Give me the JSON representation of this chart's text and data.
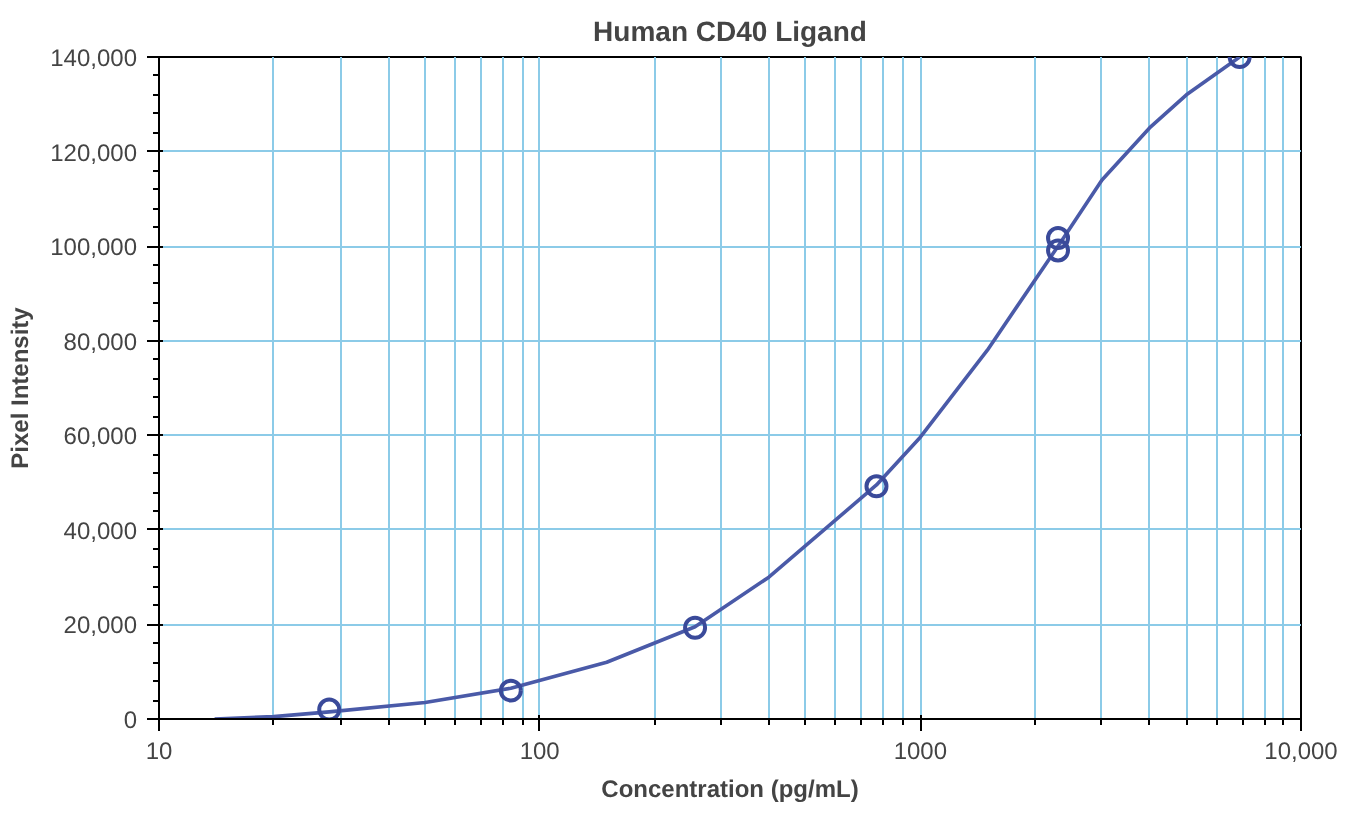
{
  "chart_data": {
    "type": "line",
    "title": "Human CD40 Ligand",
    "xlabel": "Concentration (pg/mL)",
    "ylabel": "Pixel Intensity",
    "log": "x",
    "grid": true,
    "xlim": [
      10,
      10000
    ],
    "ylim": [
      0,
      140000
    ],
    "xticks": [
      10,
      100,
      1000,
      {
        "value": 10000,
        "label": "10,000"
      }
    ],
    "yticks": [
      0,
      {
        "value": 20000,
        "label": "20,000"
      },
      {
        "value": 40000,
        "label": "40,000"
      },
      {
        "value": 60000,
        "label": "60,000"
      },
      {
        "value": 80000,
        "label": "80,000"
      },
      {
        "value": 100000,
        "label": "100,000"
      },
      {
        "value": 120000,
        "label": "120,000"
      },
      {
        "value": 140000,
        "label": "140,000"
      }
    ],
    "series": [
      {
        "type": "scatter",
        "marker": "circle",
        "color": "#3a4a9a",
        "x": [
          28,
          84,
          256,
          767,
          2300,
          2300,
          6900
        ],
        "values": [
          2000,
          6000,
          19300,
          49200,
          101700,
          99100,
          140000
        ]
      },
      {
        "color": "#4a5aa8",
        "x": [
          14,
          20,
          28,
          50,
          84,
          150,
          256,
          400,
          767,
          1000,
          1500,
          2300,
          3000,
          4000,
          5000,
          6900
        ],
        "values": [
          0,
          500,
          1500,
          3500,
          6500,
          12000,
          19500,
          30000,
          49500,
          59600,
          78000,
          100000,
          114000,
          125000,
          132000,
          140000
        ]
      }
    ]
  }
}
